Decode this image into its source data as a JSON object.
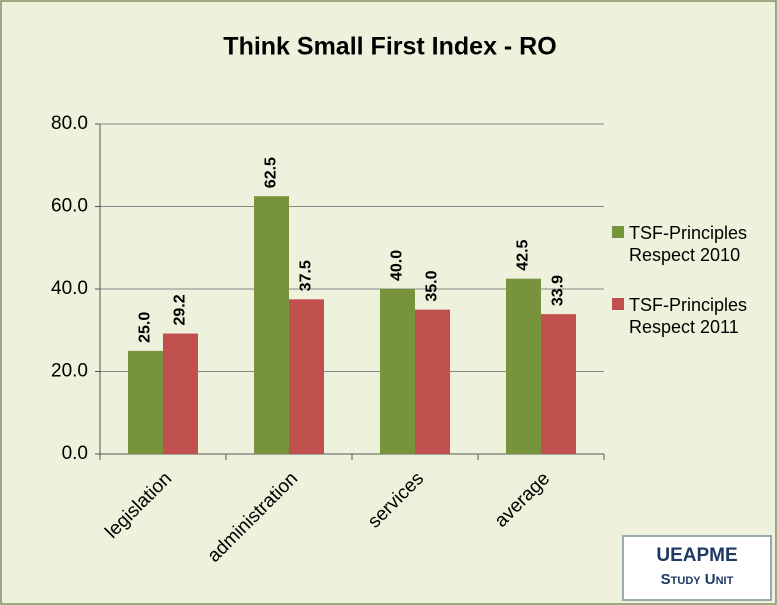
{
  "chart_data": {
    "type": "bar",
    "title": "Think Small First Index - RO",
    "categories": [
      "legislation",
      "administration",
      "services",
      "average"
    ],
    "series": [
      {
        "name": "TSF-Principles Respect 2010",
        "color": "#77933c",
        "values": [
          25.0,
          62.5,
          40.0,
          42.5
        ],
        "value_labels": [
          "25.0",
          "62.5",
          "40.0",
          "42.5"
        ]
      },
      {
        "name": "TSF-Principles Respect 2011",
        "color": "#c0504d",
        "values": [
          29.2,
          37.5,
          35.0,
          33.9
        ],
        "value_labels": [
          "29.2",
          "37.5",
          "35.0",
          "33.9"
        ]
      }
    ],
    "ylim": [
      0,
      80
    ],
    "yticks": [
      {
        "value": 0,
        "label": "0.0"
      },
      {
        "value": 20,
        "label": "20.0"
      },
      {
        "value": 40,
        "label": "40.0"
      },
      {
        "value": 60,
        "label": "60.0"
      },
      {
        "value": 80,
        "label": "80.0"
      }
    ],
    "grid": true,
    "legend": "right",
    "badge": {
      "title": "UEAPME",
      "subtitle": "Study Unit"
    }
  }
}
